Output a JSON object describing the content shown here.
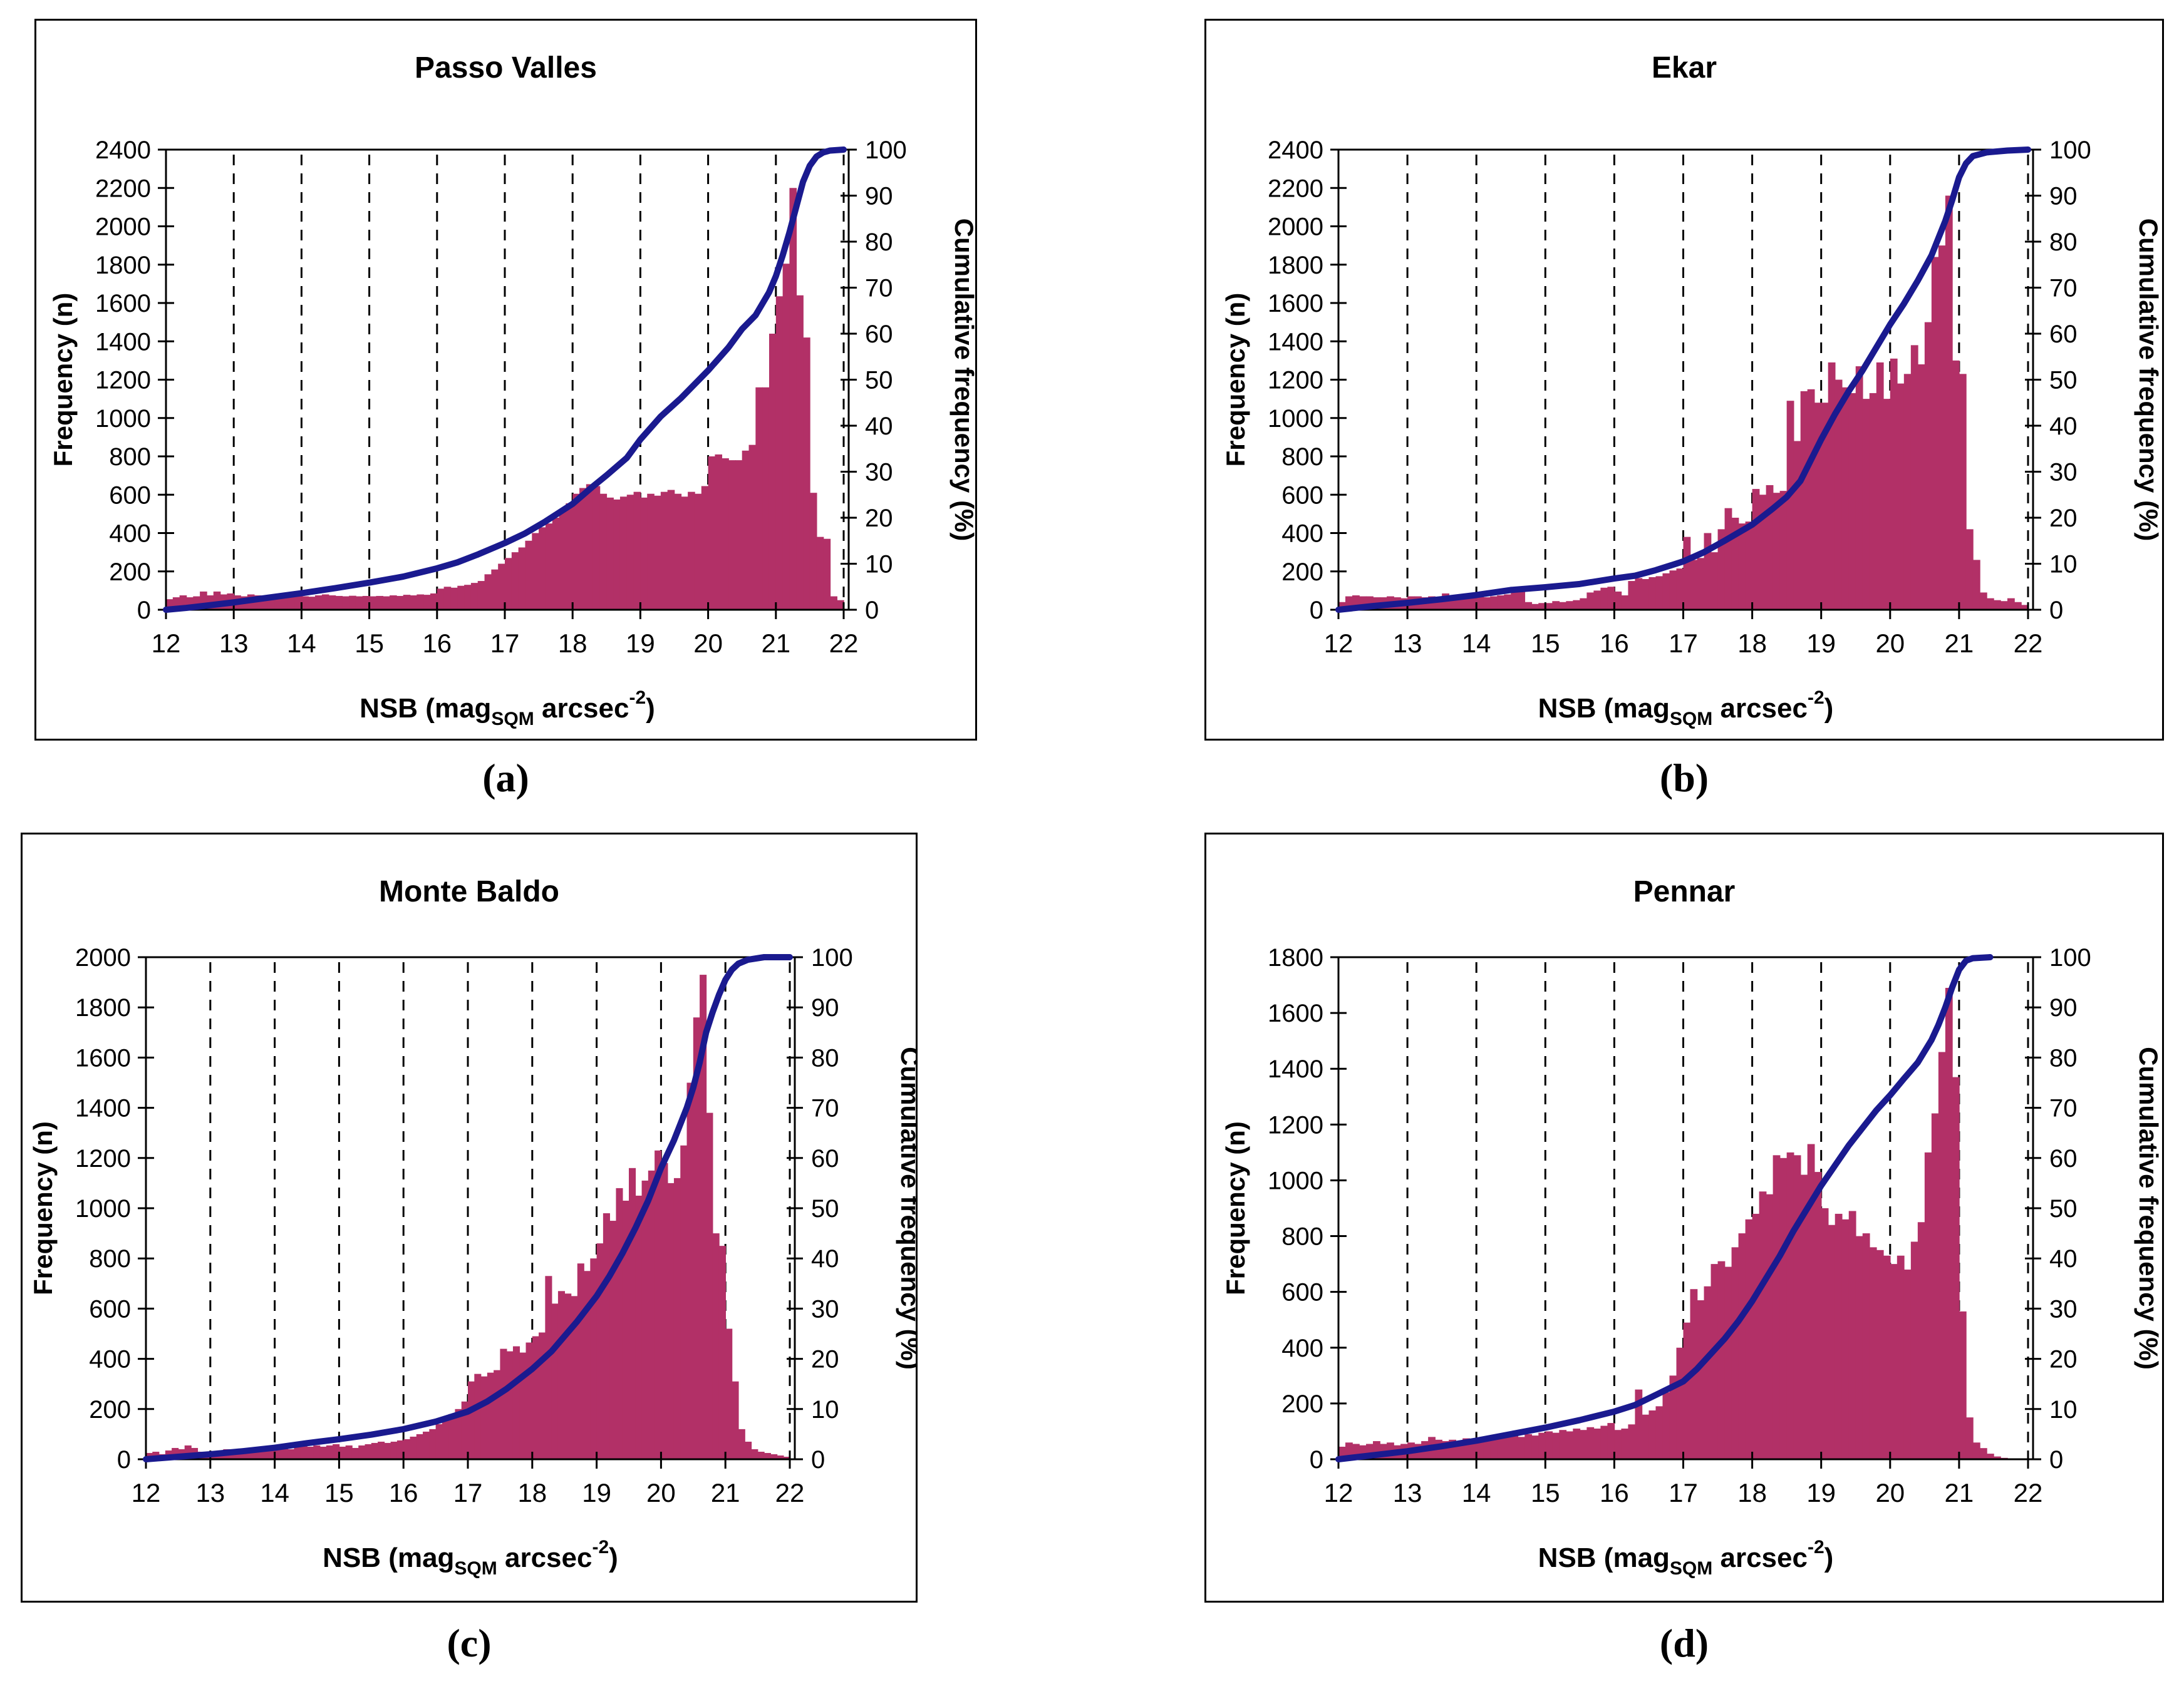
{
  "style": {
    "bar_color": "#B23067",
    "line_color": "#1A1A8F",
    "axis_color": "#000000",
    "background": "#FFFFFF",
    "gridline_style": "dashed-vertical"
  },
  "chart_data": [
    {
      "type": "bar+line",
      "panel_label": "(a)",
      "title": "Passo Valles",
      "ylabel_left": "Frequency (n)",
      "ylabel_right": "Cumulative frequency (%)",
      "xlabel_parts": {
        "pre": "NSB (mag",
        "sub": "SQM",
        "mid": " arcsec",
        "sup": "-2",
        "post": ")"
      },
      "xlim": [
        12,
        22
      ],
      "x_ticks": [
        12,
        13,
        14,
        15,
        16,
        17,
        18,
        19,
        20,
        21,
        22
      ],
      "ylim_left": [
        0,
        2400
      ],
      "y_ticks": [
        0,
        200,
        400,
        600,
        800,
        1000,
        1200,
        1400,
        1600,
        1800,
        2000,
        2200,
        2400
      ],
      "ylim_right": [
        0,
        100
      ],
      "right_ticks": [
        0,
        10,
        20,
        30,
        40,
        50,
        60,
        70,
        80,
        90,
        100
      ],
      "legend": "none",
      "bin_start": 12.0,
      "bin_width": 0.1,
      "frequencies": [
        55,
        65,
        75,
        65,
        70,
        95,
        75,
        95,
        80,
        85,
        75,
        70,
        80,
        75,
        70,
        78,
        75,
        70,
        75,
        72,
        70,
        68,
        75,
        80,
        75,
        72,
        70,
        73,
        70,
        72,
        70,
        72,
        70,
        75,
        72,
        78,
        75,
        80,
        78,
        85,
        110,
        120,
        115,
        125,
        130,
        140,
        150,
        185,
        210,
        240,
        270,
        300,
        325,
        360,
        400,
        430,
        450,
        480,
        520,
        555,
        605,
        635,
        655,
        645,
        605,
        585,
        575,
        590,
        600,
        615,
        585,
        605,
        595,
        615,
        625,
        605,
        590,
        615,
        605,
        645,
        800,
        810,
        790,
        780,
        780,
        830,
        860,
        1160,
        1160,
        1440,
        1635,
        1805,
        2200,
        1640,
        1420,
        610,
        380,
        370,
        70,
        50
      ],
      "cumulative_points": [
        [
          12,
          0
        ],
        [
          12.3,
          0.4
        ],
        [
          12.6,
          0.9
        ],
        [
          13,
          1.6
        ],
        [
          13.5,
          2.6
        ],
        [
          14,
          3.6
        ],
        [
          14.5,
          4.7
        ],
        [
          15,
          5.9
        ],
        [
          15.5,
          7.2
        ],
        [
          16,
          9
        ],
        [
          16.3,
          10.3
        ],
        [
          16.6,
          12
        ],
        [
          17,
          14.5
        ],
        [
          17.3,
          16.6
        ],
        [
          17.6,
          19.2
        ],
        [
          18,
          23
        ],
        [
          18.3,
          26.8
        ],
        [
          18.5,
          29.2
        ],
        [
          18.8,
          33
        ],
        [
          19,
          37
        ],
        [
          19.3,
          42
        ],
        [
          19.6,
          46
        ],
        [
          20,
          52
        ],
        [
          20.3,
          57
        ],
        [
          20.5,
          61
        ],
        [
          20.7,
          64
        ],
        [
          20.9,
          69
        ],
        [
          21,
          72.5
        ],
        [
          21.1,
          77
        ],
        [
          21.2,
          82
        ],
        [
          21.3,
          87.5
        ],
        [
          21.4,
          93
        ],
        [
          21.5,
          96.5
        ],
        [
          21.6,
          98.5
        ],
        [
          21.7,
          99.4
        ],
        [
          21.8,
          99.8
        ],
        [
          22,
          100
        ]
      ]
    },
    {
      "type": "bar+line",
      "panel_label": "(b)",
      "title": "Ekar",
      "ylabel_left": "Frequency (n)",
      "ylabel_right": "Cumulative frequency (%)",
      "xlabel_parts": {
        "pre": "NSB (mag",
        "sub": "SQM",
        "mid": " arcsec",
        "sup": "-2",
        "post": ")"
      },
      "xlim": [
        12,
        22
      ],
      "x_ticks": [
        12,
        13,
        14,
        15,
        16,
        17,
        18,
        19,
        20,
        21,
        22
      ],
      "ylim_left": [
        0,
        2400
      ],
      "y_ticks": [
        0,
        200,
        400,
        600,
        800,
        1000,
        1200,
        1400,
        1600,
        1800,
        2000,
        2200,
        2400
      ],
      "ylim_right": [
        0,
        100
      ],
      "right_ticks": [
        0,
        10,
        20,
        30,
        40,
        50,
        60,
        70,
        80,
        90,
        100
      ],
      "legend": "none",
      "bin_start": 12.0,
      "bin_width": 0.1,
      "frequencies": [
        40,
        70,
        75,
        70,
        70,
        65,
        65,
        70,
        65,
        60,
        70,
        70,
        65,
        70,
        60,
        85,
        65,
        60,
        65,
        70,
        70,
        65,
        70,
        75,
        80,
        115,
        120,
        40,
        30,
        35,
        35,
        45,
        40,
        45,
        50,
        60,
        90,
        100,
        115,
        120,
        95,
        75,
        150,
        165,
        160,
        170,
        175,
        190,
        205,
        215,
        380,
        260,
        270,
        400,
        300,
        420,
        530,
        480,
        450,
        460,
        630,
        600,
        650,
        610,
        620,
        1090,
        880,
        1140,
        1150,
        1080,
        1080,
        1290,
        1200,
        1160,
        1130,
        1270,
        1100,
        1130,
        1290,
        1100,
        1310,
        1180,
        1230,
        1380,
        1280,
        1500,
        1840,
        1900,
        2160,
        1300,
        1230,
        420,
        260,
        90,
        60,
        50,
        45,
        60,
        40,
        25
      ],
      "cumulative_points": [
        [
          12,
          0
        ],
        [
          12.5,
          0.8
        ],
        [
          13,
          1.5
        ],
        [
          13.5,
          2.3
        ],
        [
          14,
          3.2
        ],
        [
          14.5,
          4.3
        ],
        [
          15,
          4.9
        ],
        [
          15.5,
          5.6
        ],
        [
          16,
          6.8
        ],
        [
          16.3,
          7.4
        ],
        [
          16.6,
          8.6
        ],
        [
          17,
          10.5
        ],
        [
          17.3,
          12.5
        ],
        [
          17.6,
          15
        ],
        [
          18,
          18.5
        ],
        [
          18.3,
          22
        ],
        [
          18.5,
          24.5
        ],
        [
          18.7,
          28
        ],
        [
          19,
          37
        ],
        [
          19.2,
          42.5
        ],
        [
          19.4,
          47.5
        ],
        [
          19.6,
          52
        ],
        [
          19.8,
          57
        ],
        [
          20,
          62
        ],
        [
          20.2,
          66.5
        ],
        [
          20.4,
          71.5
        ],
        [
          20.6,
          77
        ],
        [
          20.8,
          84.5
        ],
        [
          20.9,
          89
        ],
        [
          21,
          94
        ],
        [
          21.1,
          97
        ],
        [
          21.2,
          98.6
        ],
        [
          21.4,
          99.4
        ],
        [
          21.7,
          99.8
        ],
        [
          22,
          100
        ]
      ]
    },
    {
      "type": "bar+line",
      "panel_label": "(c)",
      "title": "Monte Baldo",
      "ylabel_left": "Frequency (n)",
      "ylabel_right": "Cumulative frequency (%)",
      "xlabel_parts": {
        "pre": "NSB (mag",
        "sub": "SQM",
        "mid": " arcsec",
        "sup": "-2",
        "post": ")"
      },
      "xlim": [
        12,
        22
      ],
      "x_ticks": [
        12,
        13,
        14,
        15,
        16,
        17,
        18,
        19,
        20,
        21,
        22
      ],
      "ylim_left": [
        0,
        2000
      ],
      "y_ticks": [
        0,
        200,
        400,
        600,
        800,
        1000,
        1200,
        1400,
        1600,
        1800,
        2000
      ],
      "ylim_right": [
        0,
        100
      ],
      "right_ticks": [
        0,
        10,
        20,
        30,
        40,
        50,
        60,
        70,
        80,
        90,
        100
      ],
      "legend": "none",
      "bin_start": 12.0,
      "bin_width": 0.1,
      "frequencies": [
        25,
        30,
        20,
        35,
        45,
        40,
        55,
        45,
        30,
        25,
        30,
        35,
        40,
        35,
        30,
        35,
        40,
        35,
        40,
        45,
        40,
        45,
        40,
        50,
        55,
        50,
        55,
        50,
        55,
        60,
        50,
        55,
        45,
        55,
        60,
        65,
        70,
        65,
        70,
        75,
        80,
        90,
        100,
        110,
        120,
        140,
        160,
        180,
        200,
        230,
        310,
        340,
        330,
        345,
        355,
        440,
        430,
        450,
        425,
        465,
        490,
        505,
        730,
        620,
        670,
        660,
        650,
        780,
        750,
        800,
        860,
        980,
        950,
        1080,
        1030,
        1160,
        1050,
        1110,
        1150,
        1230,
        1180,
        1100,
        1120,
        1250,
        1500,
        1760,
        1930,
        1380,
        900,
        850,
        520,
        310,
        120,
        70,
        40,
        30,
        25,
        20,
        15,
        10
      ],
      "cumulative_points": [
        [
          12,
          0
        ],
        [
          12.5,
          0.5
        ],
        [
          13,
          1
        ],
        [
          13.5,
          1.6
        ],
        [
          14,
          2.3
        ],
        [
          14.5,
          3.2
        ],
        [
          15,
          4
        ],
        [
          15.5,
          4.9
        ],
        [
          16,
          6
        ],
        [
          16.5,
          7.5
        ],
        [
          17,
          9.5
        ],
        [
          17.3,
          11.5
        ],
        [
          17.6,
          14
        ],
        [
          18,
          18
        ],
        [
          18.3,
          21.5
        ],
        [
          18.5,
          24.5
        ],
        [
          18.7,
          27.5
        ],
        [
          19,
          32.5
        ],
        [
          19.2,
          36.5
        ],
        [
          19.4,
          41
        ],
        [
          19.6,
          46
        ],
        [
          19.8,
          51.5
        ],
        [
          20,
          58
        ],
        [
          20.2,
          63.5
        ],
        [
          20.4,
          70
        ],
        [
          20.5,
          74
        ],
        [
          20.6,
          79
        ],
        [
          20.7,
          85
        ],
        [
          20.8,
          89
        ],
        [
          20.9,
          92.5
        ],
        [
          21,
          95.5
        ],
        [
          21.1,
          97.5
        ],
        [
          21.2,
          98.7
        ],
        [
          21.35,
          99.5
        ],
        [
          21.6,
          100
        ],
        [
          22,
          100
        ]
      ]
    },
    {
      "type": "bar+line",
      "panel_label": "(d)",
      "title": "Pennar",
      "ylabel_left": "Frequency (n)",
      "ylabel_right": "Cumulative frequency (%)",
      "xlabel_parts": {
        "pre": "NSB (mag",
        "sub": "SQM",
        "mid": " arcsec",
        "sup": "-2",
        "post": ")"
      },
      "xlim": [
        12,
        22
      ],
      "x_ticks": [
        12,
        13,
        14,
        15,
        16,
        17,
        18,
        19,
        20,
        21,
        22
      ],
      "ylim_left": [
        0,
        1800
      ],
      "y_ticks": [
        0,
        200,
        400,
        600,
        800,
        1000,
        1200,
        1400,
        1600,
        1800
      ],
      "ylim_right": [
        0,
        100
      ],
      "right_ticks": [
        0,
        10,
        20,
        30,
        40,
        50,
        60,
        70,
        80,
        90,
        100
      ],
      "legend": "none",
      "bin_start": 12.0,
      "bin_width": 0.1,
      "frequencies": [
        45,
        60,
        55,
        50,
        55,
        65,
        55,
        60,
        50,
        55,
        60,
        55,
        65,
        80,
        70,
        65,
        70,
        60,
        75,
        70,
        75,
        70,
        80,
        75,
        85,
        90,
        80,
        90,
        85,
        95,
        100,
        95,
        105,
        100,
        110,
        105,
        115,
        110,
        120,
        130,
        105,
        110,
        125,
        250,
        160,
        175,
        190,
        240,
        300,
        400,
        490,
        610,
        570,
        620,
        700,
        710,
        690,
        760,
        810,
        860,
        880,
        960,
        950,
        1090,
        1080,
        1100,
        1090,
        1020,
        1130,
        1030,
        900,
        840,
        880,
        860,
        890,
        800,
        810,
        760,
        750,
        730,
        700,
        730,
        680,
        780,
        850,
        1100,
        1240,
        1460,
        1690,
        1370,
        530,
        150,
        60,
        40,
        20,
        10,
        5,
        0,
        0,
        0
      ],
      "cumulative_points": [
        [
          12,
          0
        ],
        [
          12.5,
          0.8
        ],
        [
          13,
          1.6
        ],
        [
          13.5,
          2.6
        ],
        [
          14,
          3.7
        ],
        [
          14.5,
          5
        ],
        [
          15,
          6.3
        ],
        [
          15.5,
          7.8
        ],
        [
          16,
          9.5
        ],
        [
          16.3,
          10.8
        ],
        [
          16.6,
          12.8
        ],
        [
          17,
          15.5
        ],
        [
          17.2,
          18
        ],
        [
          17.4,
          21
        ],
        [
          17.6,
          24
        ],
        [
          17.8,
          27.5
        ],
        [
          18,
          31.5
        ],
        [
          18.2,
          36
        ],
        [
          18.4,
          40.5
        ],
        [
          18.6,
          45.5
        ],
        [
          18.8,
          50
        ],
        [
          19,
          54.5
        ],
        [
          19.2,
          58.5
        ],
        [
          19.4,
          62.5
        ],
        [
          19.6,
          66
        ],
        [
          19.8,
          69.5
        ],
        [
          20,
          72.5
        ],
        [
          20.2,
          75.8
        ],
        [
          20.4,
          79
        ],
        [
          20.6,
          83.5
        ],
        [
          20.7,
          86.5
        ],
        [
          20.8,
          90
        ],
        [
          20.9,
          94
        ],
        [
          21,
          97.5
        ],
        [
          21.1,
          99.3
        ],
        [
          21.2,
          99.8
        ],
        [
          21.45,
          100
        ]
      ]
    }
  ]
}
